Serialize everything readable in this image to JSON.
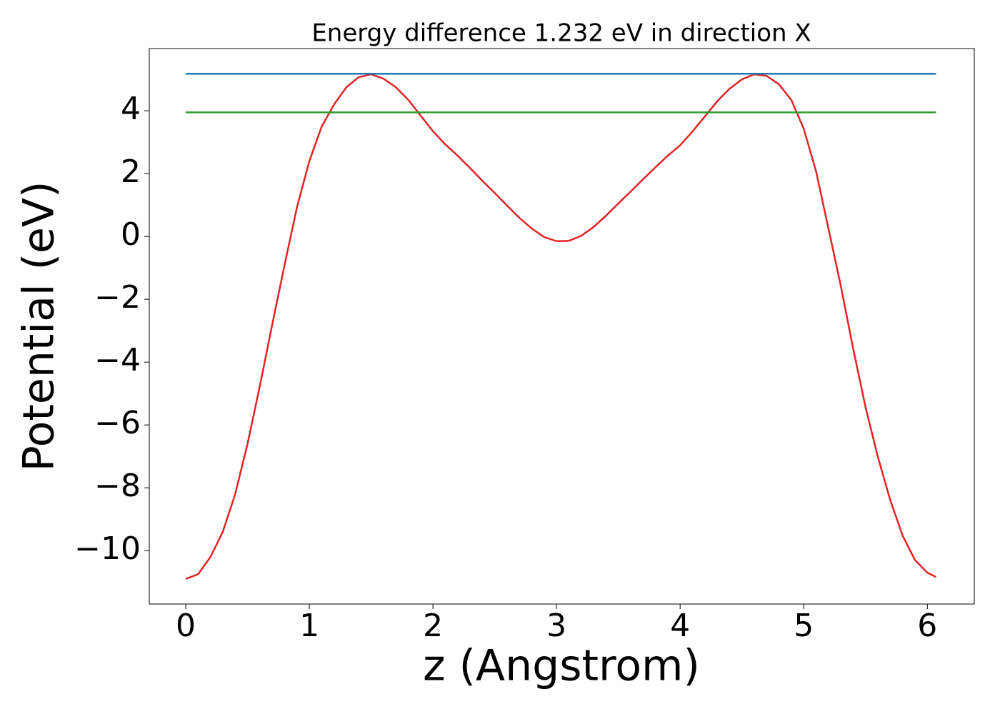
{
  "chart_data": {
    "type": "line",
    "title": "Energy difference 1.232 eV in direction X",
    "xlabel": "z (Angstrom)",
    "ylabel": "Potential (eV)",
    "xlim": [
      -0.295,
      6.38
    ],
    "ylim": [
      -11.7,
      5.98
    ],
    "xticks": [
      0,
      1,
      2,
      3,
      4,
      5,
      6
    ],
    "yticks": [
      {
        "value": -10,
        "label": "−10"
      },
      {
        "value": -8,
        "label": "−8"
      },
      {
        "value": -6,
        "label": "−6"
      },
      {
        "value": -4,
        "label": "−4"
      },
      {
        "value": -2,
        "label": "−2"
      },
      0,
      2,
      4
    ],
    "grid": false,
    "series": [
      {
        "color": "#e32424",
        "x": [
          0,
          0.1,
          0.2,
          0.3,
          0.4,
          0.5,
          0.6,
          0.7,
          0.8,
          0.9,
          1.0,
          1.1,
          1.2,
          1.3,
          1.4,
          1.5,
          1.6,
          1.7,
          1.8,
          1.9,
          2.0,
          2.1,
          2.2,
          2.3,
          2.4,
          2.5,
          2.6,
          2.7,
          2.8,
          2.9,
          3.0,
          3.1,
          3.2,
          3.3,
          3.4,
          3.5,
          3.6,
          3.7,
          3.8,
          3.9,
          4.0,
          4.1,
          4.2,
          4.3,
          4.4,
          4.5,
          4.6,
          4.7,
          4.8,
          4.9,
          5.0,
          5.1,
          5.2,
          5.3,
          5.4,
          5.5,
          5.6,
          5.7,
          5.8,
          5.9,
          6.0,
          6.07
        ],
        "values": [
          -10.9,
          -10.75,
          -10.2,
          -9.4,
          -8.2,
          -6.6,
          -4.75,
          -2.8,
          -0.9,
          0.93,
          2.4,
          3.5,
          4.2,
          4.75,
          5.07,
          5.16,
          5.02,
          4.75,
          4.35,
          3.85,
          3.35,
          2.93,
          2.57,
          2.18,
          1.77,
          1.38,
          0.98,
          0.59,
          0.25,
          -0.02,
          -0.15,
          -0.14,
          0.02,
          0.3,
          0.66,
          1.05,
          1.43,
          1.82,
          2.2,
          2.57,
          2.9,
          3.34,
          3.82,
          4.3,
          4.7,
          5.0,
          5.16,
          5.11,
          4.84,
          4.34,
          3.43,
          2.07,
          0.25,
          -1.57,
          -3.57,
          -5.43,
          -7.02,
          -8.39,
          -9.52,
          -10.3,
          -10.7,
          -10.84
        ]
      },
      {
        "color": "#1f77b4",
        "x": [
          0,
          6.07
        ],
        "values": [
          5.18,
          5.18
        ]
      },
      {
        "color": "#2ca02c",
        "x": [
          0,
          6.07
        ],
        "values": [
          3.948,
          3.948
        ]
      }
    ]
  }
}
